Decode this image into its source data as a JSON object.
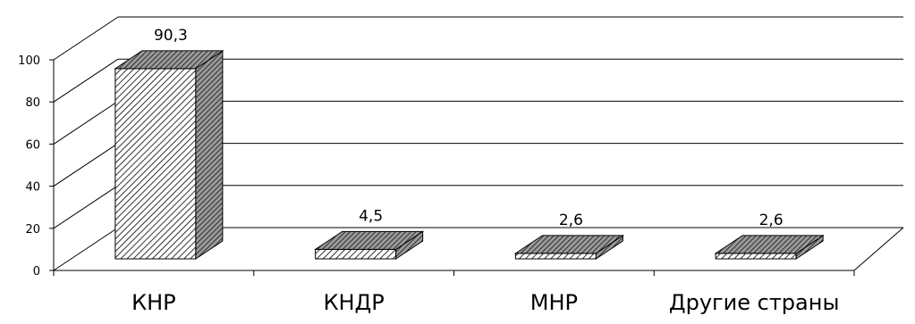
{
  "chart_data": {
    "type": "bar",
    "style": "3d-column",
    "categories": [
      "КНР",
      "КНДР",
      "МНР",
      "Другие страны"
    ],
    "values": [
      90.3,
      4.5,
      2.6,
      2.6
    ],
    "data_labels": [
      "90,3",
      "4,5",
      "2,6",
      "2,6"
    ],
    "ylim": [
      0,
      100
    ],
    "yticks": [
      0,
      20,
      40,
      60,
      80,
      100
    ],
    "ytick_labels": [
      "0",
      "20",
      "40",
      "60",
      "80",
      "100"
    ],
    "grid": true,
    "legend": "none",
    "colors": {
      "front_hatch": "#000000",
      "side_fill": "#6b6b6b",
      "grid": "#000000"
    }
  }
}
